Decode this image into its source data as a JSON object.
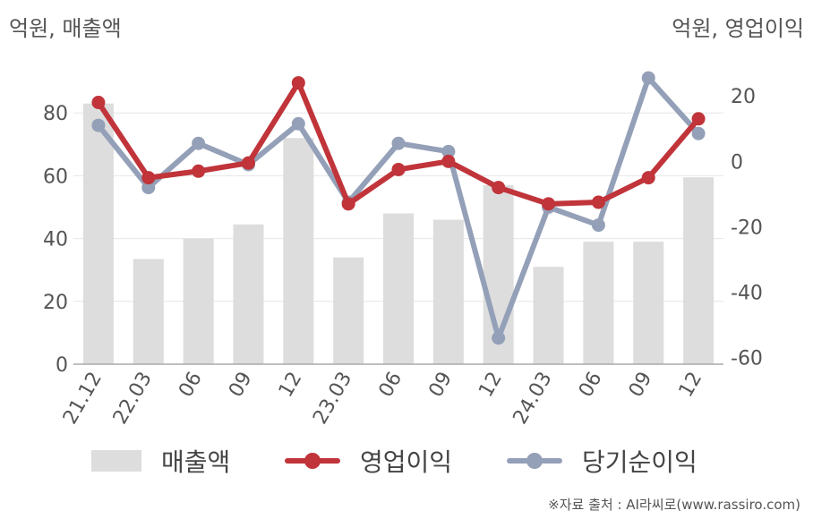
{
  "units": {
    "left": "억원, 매출액",
    "right": "억원, 영업이익"
  },
  "source": "※자료 출처 : AI라씨로(www.rassiro.com)",
  "legend": {
    "revenue": "매출액",
    "operating_profit": "영업이익",
    "net_income": "당기순이익"
  },
  "colors": {
    "revenue": "#dddddd",
    "operating_profit": "#c0343a",
    "net_income": "#94a0b8"
  },
  "chart_data": {
    "type": "bar+line",
    "categories": [
      "21.12",
      "22.03",
      "06",
      "09",
      "12",
      "23.03",
      "06",
      "09",
      "12",
      "24.03",
      "06",
      "09",
      "12"
    ],
    "left_axis": {
      "ticks": [
        "0",
        "20",
        "40",
        "60",
        "80"
      ],
      "ylim": [
        0,
        100
      ]
    },
    "right_axis": {
      "ticks": [
        "-60",
        "-40",
        "-20",
        "0",
        "20"
      ],
      "ylim": [
        -62,
        34
      ]
    },
    "series": [
      {
        "name": "매출액",
        "type": "bar",
        "axis": "left",
        "values": [
          83,
          33.5,
          40,
          44.5,
          72,
          34,
          48,
          46,
          57,
          31,
          39,
          39,
          59.5
        ]
      },
      {
        "name": "영업이익",
        "type": "line",
        "axis": "right",
        "values": [
          18,
          -5,
          -3,
          -0.5,
          24,
          -13,
          -2.5,
          0,
          -8,
          -13,
          -12.5,
          -5,
          13
        ]
      },
      {
        "name": "당기순이익",
        "type": "line",
        "axis": "right",
        "values": [
          11,
          -8,
          5.5,
          -1,
          11.5,
          -12.5,
          5.5,
          3,
          -54,
          -14,
          -19.5,
          25.5,
          8.5
        ]
      }
    ],
    "grid": "horizontal"
  }
}
